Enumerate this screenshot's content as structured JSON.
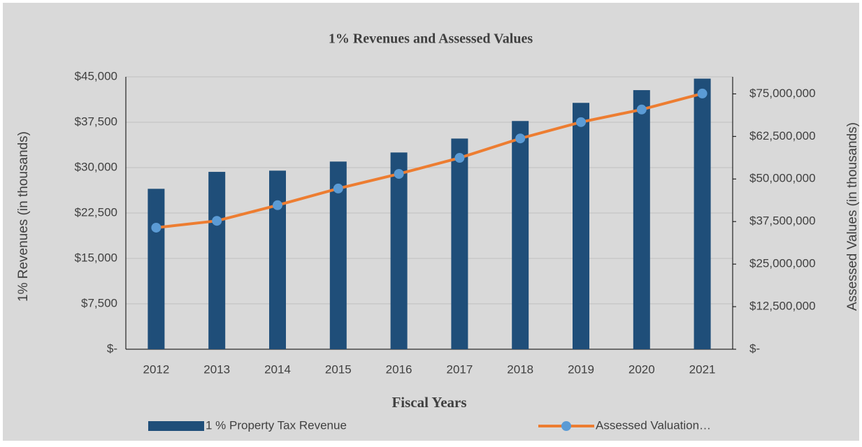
{
  "chart_data": {
    "type": "bar_line",
    "title": "1% Revenues and Assessed Values",
    "x_label": "Fiscal Years",
    "y_label": "1% Revenues  (in thousands)",
    "y2_label": "Assessed Values (in thousands)",
    "categories": [
      "2012",
      "2013",
      "2014",
      "2015",
      "2016",
      "2017",
      "2018",
      "2019",
      "2020",
      "2021"
    ],
    "series": [
      {
        "name": "1 % Property Tax Revenue",
        "color": "#1f4e79",
        "type": "bar",
        "values": [
          26500,
          29300,
          29500,
          31000,
          32500,
          34800,
          37700,
          40700,
          42800,
          44700
        ]
      },
      {
        "name": "Assessed Valuation…",
        "color": "#ed7d31",
        "marker_color": "#5b9bd5",
        "type": "line",
        "axis": "y2",
        "values": [
          35700000,
          37700000,
          42300000,
          47200000,
          51500000,
          56200000,
          61900000,
          66700000,
          70400000,
          75100000
        ]
      }
    ],
    "ylim": [
      0,
      45000
    ],
    "yticks": [
      {
        "value": 0,
        "label": "$-"
      },
      {
        "value": 7500,
        "label": "$7,500"
      },
      {
        "value": 15000,
        "label": "$15,000"
      },
      {
        "value": 22500,
        "label": "$22,500"
      },
      {
        "value": 30000,
        "label": "$30,000"
      },
      {
        "value": 37500,
        "label": "$37,500"
      },
      {
        "value": 45000,
        "label": "$45,000"
      }
    ],
    "y2lim": [
      0,
      80000000
    ],
    "y2ticks": [
      {
        "value": 0,
        "label": "$-"
      },
      {
        "value": 12500000,
        "label": "$12,500,000"
      },
      {
        "value": 25000000,
        "label": "$25,000,000"
      },
      {
        "value": 37500000,
        "label": "$37,500,000"
      },
      {
        "value": 50000000,
        "label": "$50,000,000"
      },
      {
        "value": 62500000,
        "label": "$62,500,000"
      },
      {
        "value": 75000000,
        "label": "$75,000,000"
      }
    ],
    "grid": true,
    "legend": "bottom"
  }
}
